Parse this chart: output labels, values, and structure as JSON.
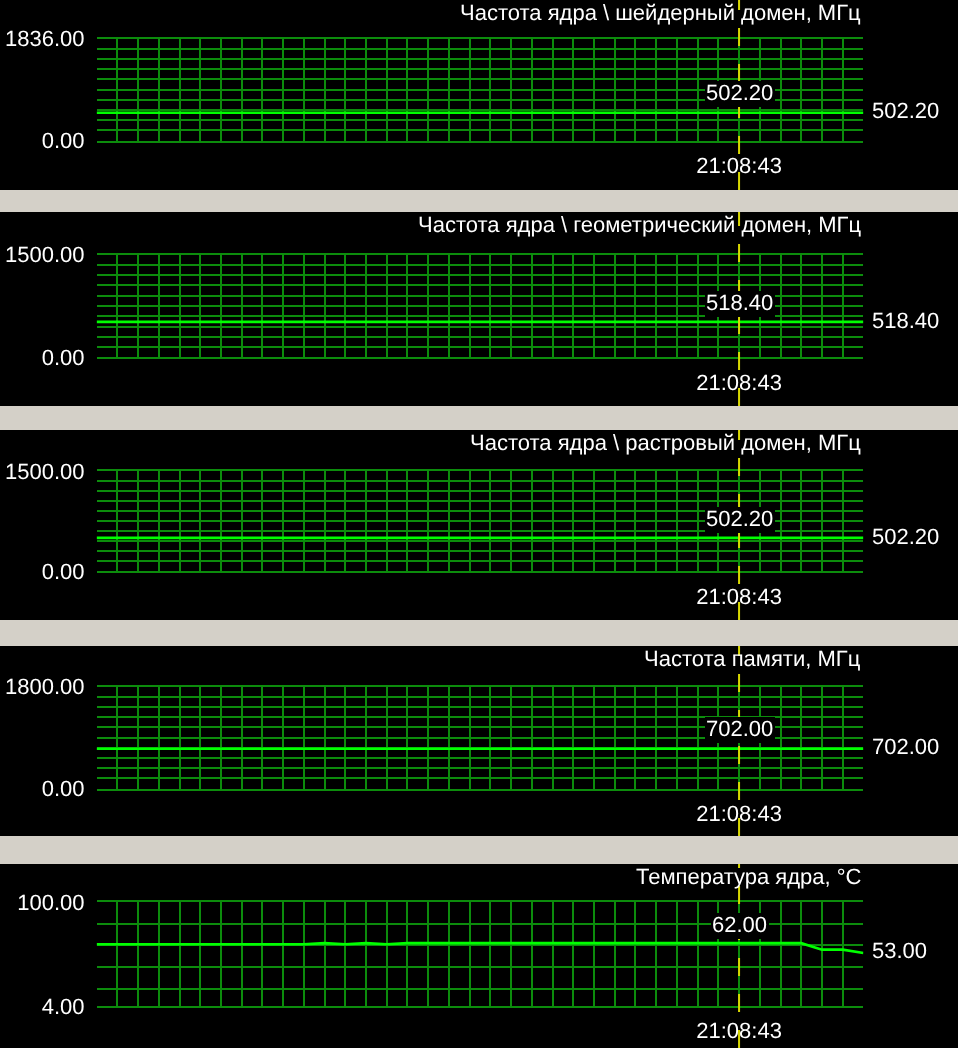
{
  "chart_data": [
    {
      "type": "line",
      "title": "Частота ядра \\ шейдерный домен, МГц",
      "categories": [
        null,
        null,
        null,
        null,
        null,
        null,
        null,
        null,
        null,
        null,
        null,
        null,
        null,
        null,
        null,
        null,
        null,
        null,
        null,
        null,
        null,
        null,
        null,
        null,
        null,
        null,
        null,
        null,
        null,
        null,
        null,
        "21:08:43",
        null,
        null,
        null,
        null,
        null,
        null
      ],
      "series": [
        {
          "color": "#00ff00",
          "values": [
            502.2,
            502.2,
            502.2,
            502.2,
            502.2,
            502.2,
            502.2,
            502.2,
            502.2,
            502.2,
            502.2,
            502.2,
            502.2,
            502.2,
            502.2,
            502.2,
            502.2,
            502.2,
            502.2,
            502.2,
            502.2,
            502.2,
            502.2,
            502.2,
            502.2,
            502.2,
            502.2,
            502.2,
            502.2,
            502.2,
            502.2,
            502.2,
            502.2,
            502.2,
            502.2,
            502.2,
            502.2,
            502.2
          ],
          "value_labels": [
            null,
            null,
            null,
            null,
            null,
            null,
            null,
            null,
            null,
            null,
            null,
            null,
            null,
            null,
            null,
            null,
            null,
            null,
            null,
            null,
            null,
            null,
            null,
            null,
            null,
            null,
            null,
            null,
            null,
            null,
            null,
            "502.20",
            null,
            null,
            null,
            null,
            null,
            "502.20"
          ]
        }
      ],
      "ylim": [
        0,
        1836
      ],
      "yticks": [
        {
          "value": 0,
          "label": "0.00"
        },
        {
          "value": 183.6,
          "label": null
        },
        {
          "value": 367.2,
          "label": null
        },
        {
          "value": 550.8,
          "label": null
        },
        {
          "value": 734.4,
          "label": null
        },
        {
          "value": 918,
          "label": null
        },
        {
          "value": 1101.6,
          "label": null
        },
        {
          "value": 1285.2,
          "label": null
        },
        {
          "value": 1468.8,
          "label": null
        },
        {
          "value": 1652.4,
          "label": null
        },
        {
          "value": 1836,
          "label": "1836.00"
        }
      ],
      "grid": true,
      "ref_lines": [
        {
          "axis": "x",
          "value": "21:08:43",
          "color": "#d8d800",
          "line_style": "dashed"
        }
      ]
    },
    {
      "type": "line",
      "title": "Частота ядра \\ геометрический домен, МГц",
      "categories": [
        null,
        null,
        null,
        null,
        null,
        null,
        null,
        null,
        null,
        null,
        null,
        null,
        null,
        null,
        null,
        null,
        null,
        null,
        null,
        null,
        null,
        null,
        null,
        null,
        null,
        null,
        null,
        null,
        null,
        null,
        null,
        "21:08:43",
        null,
        null,
        null,
        null,
        null,
        null
      ],
      "series": [
        {
          "color": "#00ff00",
          "values": [
            518.4,
            518.4,
            518.4,
            518.4,
            518.4,
            518.4,
            518.4,
            518.4,
            518.4,
            518.4,
            518.4,
            518.4,
            518.4,
            518.4,
            518.4,
            518.4,
            518.4,
            518.4,
            518.4,
            518.4,
            518.4,
            518.4,
            518.4,
            518.4,
            518.4,
            518.4,
            518.4,
            518.4,
            518.4,
            518.4,
            518.4,
            518.4,
            518.4,
            518.4,
            518.4,
            518.4,
            518.4,
            518.4
          ],
          "value_labels": [
            null,
            null,
            null,
            null,
            null,
            null,
            null,
            null,
            null,
            null,
            null,
            null,
            null,
            null,
            null,
            null,
            null,
            null,
            null,
            null,
            null,
            null,
            null,
            null,
            null,
            null,
            null,
            null,
            null,
            null,
            null,
            "518.40",
            null,
            null,
            null,
            null,
            null,
            "518.40"
          ]
        }
      ],
      "ylim": [
        0,
        1500
      ],
      "yticks": [
        {
          "value": 0,
          "label": "0.00"
        },
        {
          "value": 150,
          "label": null
        },
        {
          "value": 300,
          "label": null
        },
        {
          "value": 450,
          "label": null
        },
        {
          "value": 600,
          "label": null
        },
        {
          "value": 750,
          "label": null
        },
        {
          "value": 900,
          "label": null
        },
        {
          "value": 1050,
          "label": null
        },
        {
          "value": 1200,
          "label": null
        },
        {
          "value": 1350,
          "label": null
        },
        {
          "value": 1500,
          "label": "1500.00"
        }
      ],
      "grid": true,
      "ref_lines": [
        {
          "axis": "x",
          "value": "21:08:43",
          "color": "#d8d800",
          "line_style": "dashed"
        }
      ]
    },
    {
      "type": "line",
      "title": "Частота ядра \\ растровый домен, МГц",
      "categories": [
        null,
        null,
        null,
        null,
        null,
        null,
        null,
        null,
        null,
        null,
        null,
        null,
        null,
        null,
        null,
        null,
        null,
        null,
        null,
        null,
        null,
        null,
        null,
        null,
        null,
        null,
        null,
        null,
        null,
        null,
        null,
        "21:08:43",
        null,
        null,
        null,
        null,
        null,
        null
      ],
      "series": [
        {
          "color": "#00ff00",
          "values": [
            502.2,
            502.2,
            502.2,
            502.2,
            502.2,
            502.2,
            502.2,
            502.2,
            502.2,
            502.2,
            502.2,
            502.2,
            502.2,
            502.2,
            502.2,
            502.2,
            502.2,
            502.2,
            502.2,
            502.2,
            502.2,
            502.2,
            502.2,
            502.2,
            502.2,
            502.2,
            502.2,
            502.2,
            502.2,
            502.2,
            502.2,
            502.2,
            502.2,
            502.2,
            502.2,
            502.2,
            502.2,
            502.2
          ],
          "value_labels": [
            null,
            null,
            null,
            null,
            null,
            null,
            null,
            null,
            null,
            null,
            null,
            null,
            null,
            null,
            null,
            null,
            null,
            null,
            null,
            null,
            null,
            null,
            null,
            null,
            null,
            null,
            null,
            null,
            null,
            null,
            null,
            "502.20",
            null,
            null,
            null,
            null,
            null,
            "502.20"
          ]
        }
      ],
      "ylim": [
        0,
        1500
      ],
      "yticks": [
        {
          "value": 0,
          "label": "0.00"
        },
        {
          "value": 150,
          "label": null
        },
        {
          "value": 300,
          "label": null
        },
        {
          "value": 450,
          "label": null
        },
        {
          "value": 600,
          "label": null
        },
        {
          "value": 750,
          "label": null
        },
        {
          "value": 900,
          "label": null
        },
        {
          "value": 1050,
          "label": null
        },
        {
          "value": 1200,
          "label": null
        },
        {
          "value": 1350,
          "label": null
        },
        {
          "value": 1500,
          "label": "1500.00"
        }
      ],
      "grid": true,
      "ref_lines": [
        {
          "axis": "x",
          "value": "21:08:43",
          "color": "#d8d800",
          "line_style": "dashed"
        }
      ]
    },
    {
      "type": "line",
      "title": "Частота памяти, МГц",
      "categories": [
        null,
        null,
        null,
        null,
        null,
        null,
        null,
        null,
        null,
        null,
        null,
        null,
        null,
        null,
        null,
        null,
        null,
        null,
        null,
        null,
        null,
        null,
        null,
        null,
        null,
        null,
        null,
        null,
        null,
        null,
        null,
        "21:08:43",
        null,
        null,
        null,
        null,
        null,
        null
      ],
      "series": [
        {
          "color": "#00ff00",
          "values": [
            702,
            702,
            702,
            702,
            702,
            702,
            702,
            702,
            702,
            702,
            702,
            702,
            702,
            702,
            702,
            702,
            702,
            702,
            702,
            702,
            702,
            702,
            702,
            702,
            702,
            702,
            702,
            702,
            702,
            702,
            702,
            702,
            702,
            702,
            702,
            702,
            702,
            702
          ],
          "value_labels": [
            null,
            null,
            null,
            null,
            null,
            null,
            null,
            null,
            null,
            null,
            null,
            null,
            null,
            null,
            null,
            null,
            null,
            null,
            null,
            null,
            null,
            null,
            null,
            null,
            null,
            null,
            null,
            null,
            null,
            null,
            null,
            "702.00",
            null,
            null,
            null,
            null,
            null,
            "702.00"
          ]
        }
      ],
      "ylim": [
        0,
        1800
      ],
      "yticks": [
        {
          "value": 0,
          "label": "0.00"
        },
        {
          "value": 180,
          "label": null
        },
        {
          "value": 360,
          "label": null
        },
        {
          "value": 540,
          "label": null
        },
        {
          "value": 720,
          "label": null
        },
        {
          "value": 900,
          "label": null
        },
        {
          "value": 1080,
          "label": null
        },
        {
          "value": 1260,
          "label": null
        },
        {
          "value": 1440,
          "label": null
        },
        {
          "value": 1620,
          "label": null
        },
        {
          "value": 1800,
          "label": "1800.00"
        }
      ],
      "grid": true,
      "ref_lines": [
        {
          "axis": "x",
          "value": "21:08:43",
          "color": "#d8d800",
          "line_style": "dashed"
        }
      ]
    },
    {
      "type": "line",
      "title": "Температура ядра, °C",
      "categories": [
        null,
        null,
        null,
        null,
        null,
        null,
        null,
        null,
        null,
        null,
        null,
        null,
        null,
        null,
        null,
        null,
        null,
        null,
        null,
        null,
        null,
        null,
        null,
        null,
        null,
        null,
        null,
        null,
        null,
        null,
        null,
        "21:08:43",
        null,
        null,
        null,
        null,
        null,
        null
      ],
      "series": [
        {
          "color": "#00ff00",
          "values": [
            61,
            61,
            61,
            61,
            61,
            61,
            61,
            61,
            61,
            61,
            61,
            62,
            61,
            62,
            61,
            62,
            62,
            62,
            62,
            62,
            62,
            62,
            62,
            62,
            62,
            62,
            62,
            62,
            62,
            62,
            62,
            62,
            62,
            62,
            62,
            56,
            56,
            53
          ],
          "value_labels": [
            null,
            null,
            null,
            null,
            null,
            null,
            null,
            null,
            null,
            null,
            null,
            null,
            null,
            null,
            null,
            null,
            null,
            null,
            null,
            null,
            null,
            null,
            null,
            null,
            null,
            null,
            null,
            null,
            null,
            null,
            null,
            "62.00",
            null,
            null,
            null,
            null,
            null,
            "53.00"
          ]
        }
      ],
      "ylim": [
        4,
        100
      ],
      "yticks": [
        {
          "value": 4,
          "label": "4.00"
        },
        {
          "value": 20,
          "label": null
        },
        {
          "value": 40,
          "label": null
        },
        {
          "value": 60,
          "label": null
        },
        {
          "value": 80,
          "label": null
        },
        {
          "value": 100,
          "label": "100.00"
        }
      ],
      "grid": true,
      "ref_lines": [
        {
          "axis": "x",
          "value": "21:08:43",
          "color": "#d8d800",
          "line_style": "dashed"
        }
      ]
    }
  ]
}
